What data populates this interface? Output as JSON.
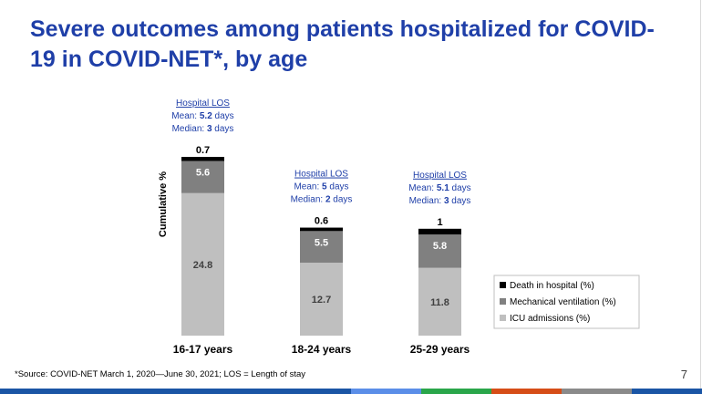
{
  "slide": {
    "title": "Severe outcomes among patients hospitalized for COVID-19 in COVID-NET*, by age",
    "footnote": "*Source: COVID-NET March 1, 2020—June 30, 2021; LOS = Length of stay",
    "page_number": "7",
    "colors": {
      "title": "#1f3fa8",
      "footer": [
        "#1a55a5",
        "#1a55a5",
        "#1a55a5",
        "#1a55a5",
        "#1a55a5",
        "#5b8ee8",
        "#2aa64a",
        "#d64d17",
        "#8a8a8a",
        "#1a55a5"
      ]
    }
  },
  "chart_data": {
    "type": "stacked_bar",
    "title": "Severe outcomes among patients hospitalized for COVID-19 in COVID-NET*, by age",
    "ylabel": "Cumulative %",
    "xlabel": "",
    "categories": [
      "16-17 years",
      "18-24 years",
      "25-29 years"
    ],
    "series": [
      {
        "name": "ICU admissions (%)",
        "color": "#bfbfbf",
        "label_color": "#404040",
        "values": [
          24.8,
          12.7,
          11.8
        ],
        "labels": [
          "24.8",
          "12.7",
          "11.8"
        ]
      },
      {
        "name": "Mechanical ventilation (%)",
        "color": "#808080",
        "label_color": "#ffffff",
        "values": [
          5.6,
          5.5,
          5.8
        ],
        "labels": [
          "5.6",
          "5.5",
          "5.8"
        ]
      },
      {
        "name": "Death in hospital (%)",
        "color": "#000000",
        "label_color": "#000000",
        "values": [
          0.7,
          0.6,
          1
        ],
        "labels": [
          "0.7",
          "0.6",
          "1"
        ]
      }
    ],
    "legend": {
      "position": "bottom-right",
      "order": [
        "Death in hospital (%)",
        "Mechanical ventilation (%)",
        "ICU admissions (%)"
      ]
    },
    "annotations": [
      {
        "category": "16-17 years",
        "heading": "Hospital LOS",
        "mean_label": "Mean: ",
        "mean_value": "5.2",
        "median_label": "Median: ",
        "median_value": "3",
        "unit": " days"
      },
      {
        "category": "18-24 years",
        "heading": "Hospital LOS",
        "mean_label": "Mean: ",
        "mean_value": "5",
        "median_label": "Median: ",
        "median_value": "2",
        "unit": " days"
      },
      {
        "category": "25-29 years",
        "heading": "Hospital LOS",
        "mean_label": "Mean: ",
        "mean_value": "5.1",
        "median_label": "Median: ",
        "median_value": "3",
        "unit": " days"
      }
    ]
  }
}
